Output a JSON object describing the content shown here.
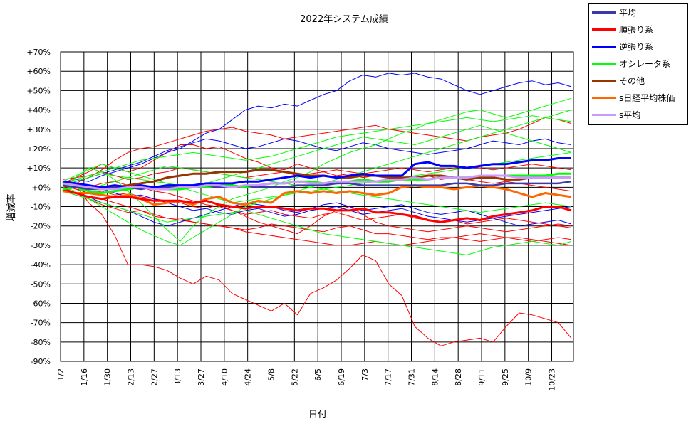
{
  "chart_data": {
    "type": "line",
    "title": "2022年システム成績",
    "xlabel": "日付",
    "ylabel": "増減率",
    "x_ticks": [
      "1/2",
      "1/16",
      "1/30",
      "2/13",
      "2/27",
      "3/13",
      "3/27",
      "4/10",
      "4/24",
      "5/8",
      "5/22",
      "6/5",
      "6/19",
      "7/3",
      "7/17",
      "7/31",
      "8/14",
      "8/28",
      "9/11",
      "9/25",
      "10/9",
      "10/23"
    ],
    "x_range": [
      "2022-01-02",
      "2022-11-05"
    ],
    "ylim": [
      -90,
      70
    ],
    "y_ticks": [
      "+70%",
      "+60%",
      "+50%",
      "+40%",
      "+30%",
      "+20%",
      "+10%",
      "+0%",
      "-10%",
      "-20%",
      "-30%",
      "-40%",
      "-50%",
      "-60%",
      "-70%",
      "-80%",
      "-90%"
    ],
    "grid": true,
    "legend_position": "top-right",
    "series": [
      {
        "name": "平均",
        "color": "#3a3aa8",
        "width": 2.5,
        "values": [
          1,
          0,
          -1,
          -1,
          0,
          0,
          -1,
          0,
          0,
          1,
          1,
          1,
          0,
          0,
          1,
          0,
          0,
          0,
          1,
          1,
          1,
          2,
          2,
          1,
          1,
          1,
          1,
          1,
          1,
          1,
          2,
          2,
          1,
          1,
          2,
          2,
          2,
          2,
          2,
          3
        ]
      },
      {
        "name": "順張り系",
        "color": "#ff0000",
        "width": 3,
        "values": [
          -1,
          -3,
          -5,
          -6,
          -5,
          -5,
          -6,
          -7,
          -7,
          -7,
          -8,
          -7,
          -9,
          -10,
          -11,
          -10,
          -10,
          -11,
          -12,
          -11,
          -11,
          -12,
          -12,
          -11,
          -13,
          -13,
          -14,
          -15,
          -17,
          -18,
          -17,
          -16,
          -17,
          -15,
          -14,
          -13,
          -12,
          -10,
          -10,
          -12
        ]
      },
      {
        "name": "逆張り系",
        "color": "#0000ff",
        "width": 3,
        "values": [
          3,
          2,
          1,
          0,
          1,
          0,
          1,
          0,
          1,
          1,
          1,
          2,
          2,
          2,
          3,
          3,
          4,
          5,
          6,
          5,
          6,
          5,
          6,
          7,
          6,
          6,
          6,
          12,
          13,
          11,
          11,
          10,
          11,
          12,
          12,
          13,
          14,
          14,
          15,
          15
        ]
      },
      {
        "name": "オシレータ系",
        "color": "#00ff00",
        "width": 3,
        "values": [
          -1,
          0,
          -2,
          -3,
          -2,
          -1,
          0,
          0,
          -1,
          -1,
          0,
          0,
          1,
          1,
          0,
          1,
          2,
          2,
          3,
          3,
          2,
          2,
          3,
          4,
          3,
          3,
          4,
          4,
          4,
          5,
          5,
          5,
          5,
          6,
          6,
          6,
          6,
          6,
          7,
          7
        ]
      },
      {
        "name": "その他",
        "color": "#993300",
        "width": 3,
        "values": [
          2,
          1,
          0,
          -1,
          0,
          1,
          2,
          3,
          5,
          6,
          7,
          7,
          8,
          8,
          8,
          9,
          9,
          8,
          7,
          6,
          6,
          5,
          5,
          6,
          6,
          5,
          5,
          5,
          6,
          6,
          5,
          4,
          5,
          5,
          4,
          4,
          5,
          5,
          5,
          5
        ]
      },
      {
        "name": "s日経平均株価",
        "color": "#ff6600",
        "width": 3,
        "values": [
          -2,
          -3,
          -3,
          -4,
          -5,
          -4,
          -6,
          -9,
          -8,
          -7,
          -9,
          -6,
          -5,
          -8,
          -9,
          -7,
          -8,
          -3,
          -2,
          -3,
          -2,
          -3,
          -2,
          -3,
          -4,
          -3,
          0,
          1,
          0,
          0,
          -1,
          0,
          1,
          0,
          -1,
          -3,
          -5,
          -3,
          -4,
          -5
        ]
      },
      {
        "name": "s平均",
        "color": "#cc99ff",
        "width": 3,
        "values": [
          2,
          1,
          0,
          -1,
          -1,
          0,
          0,
          -1,
          -1,
          0,
          0,
          1,
          1,
          0,
          1,
          1,
          2,
          2,
          3,
          2,
          2,
          3,
          3,
          3,
          3,
          4,
          4,
          5,
          4,
          5,
          5,
          5,
          6,
          6,
          6,
          5,
          5,
          5,
          5,
          5
        ]
      }
    ],
    "members": [
      {
        "color": "#ff0000",
        "values": [
          3,
          1,
          -8,
          -14,
          -25,
          -40,
          -40,
          -41,
          -43,
          -47,
          -50,
          -46,
          -48,
          -55,
          -58,
          -61,
          -64,
          -60,
          -66,
          -55,
          -52,
          -48,
          -42,
          -35,
          -38,
          -50,
          -56,
          -72,
          -78,
          -82,
          -80,
          -79,
          -78,
          -80,
          -72,
          -65,
          -66,
          -68,
          -70,
          -78
        ]
      },
      {
        "color": "#ff0000",
        "values": [
          2,
          5,
          8,
          12,
          10,
          8,
          10,
          14,
          18,
          22,
          22,
          20,
          21,
          18,
          15,
          13,
          10,
          9,
          12,
          10,
          8,
          6,
          7,
          5,
          6,
          5,
          4,
          5,
          6,
          4,
          5,
          4,
          3,
          2,
          3,
          2,
          1,
          0,
          -1,
          -2
        ]
      },
      {
        "color": "#ff0000",
        "values": [
          0,
          -3,
          -5,
          -6,
          -8,
          -10,
          -12,
          -15,
          -16,
          -16,
          -18,
          -19,
          -20,
          -21,
          -22,
          -21,
          -19,
          -20,
          -21,
          -22,
          -23,
          -21,
          -20,
          -22,
          -24,
          -24,
          -25,
          -26,
          -27,
          -26,
          -26,
          -25,
          -24,
          -25,
          -26,
          -26,
          -27,
          -28,
          -29,
          -30
        ]
      },
      {
        "color": "#ff0000",
        "values": [
          4,
          5,
          6,
          8,
          6,
          4,
          5,
          7,
          8,
          10,
          9,
          8,
          7,
          6,
          5,
          6,
          7,
          8,
          6,
          7,
          8,
          9,
          8,
          7,
          8,
          9,
          10,
          9,
          8,
          9,
          10,
          11,
          10,
          9,
          10,
          11,
          12,
          11,
          10,
          9
        ]
      },
      {
        "color": "#ff0000",
        "values": [
          -2,
          -4,
          -6,
          -9,
          -11,
          -13,
          -12,
          -14,
          -16,
          -17,
          -18,
          -19,
          -20,
          -21,
          -23,
          -24,
          -25,
          -26,
          -27,
          -28,
          -29,
          -30,
          -30,
          -29,
          -28,
          -29,
          -30,
          -29,
          -28,
          -27,
          -26,
          -27,
          -28,
          -27,
          -26,
          -27,
          -28,
          -27,
          -26,
          -27
        ]
      },
      {
        "color": "#ff0000",
        "values": [
          0,
          2,
          5,
          9,
          14,
          18,
          20,
          21,
          23,
          25,
          27,
          29,
          30,
          31,
          29,
          28,
          27,
          25,
          26,
          27,
          28,
          29,
          30,
          31,
          32,
          30,
          29,
          28,
          27,
          26,
          25,
          24,
          26,
          27,
          28,
          30,
          33,
          36,
          35,
          33
        ]
      },
      {
        "color": "#ff0000",
        "values": [
          1,
          -1,
          -3,
          -2,
          -4,
          -3,
          -5,
          -6,
          -7,
          -8,
          -10,
          -11,
          -9,
          -12,
          -14,
          -13,
          -12,
          -14,
          -15,
          -16,
          -14,
          -13,
          -15,
          -17,
          -16,
          -15,
          -14,
          -16,
          -17,
          -18,
          -17,
          -19,
          -18,
          -17,
          -16,
          -17,
          -18,
          -19,
          -20,
          -21
        ]
      },
      {
        "color": "#ff0000",
        "values": [
          0,
          1,
          0,
          2,
          3,
          1,
          0,
          -2,
          -3,
          -5,
          -7,
          -9,
          -10,
          -12,
          -15,
          -18,
          -20,
          -22,
          -24,
          -20,
          -15,
          -12,
          -10,
          -14,
          -18,
          -20,
          -21,
          -22,
          -23,
          -22,
          -21,
          -20,
          -21,
          -22,
          -23,
          -22,
          -21,
          -20,
          -19,
          -20
        ]
      },
      {
        "color": "#0000ff",
        "values": [
          2,
          4,
          3,
          6,
          8,
          10,
          12,
          15,
          18,
          20,
          24,
          28,
          30,
          35,
          40,
          42,
          41,
          43,
          42,
          45,
          48,
          50,
          55,
          58,
          57,
          59,
          58,
          59,
          57,
          56,
          53,
          50,
          48,
          50,
          52,
          54,
          55,
          53,
          54,
          52
        ]
      },
      {
        "color": "#0000ff",
        "values": [
          3,
          2,
          0,
          -1,
          -3,
          -5,
          -4,
          -6,
          -8,
          -10,
          -12,
          -11,
          -13,
          -14,
          -12,
          -11,
          -13,
          -15,
          -14,
          -12,
          -11,
          -10,
          -12,
          -14,
          -13,
          -12,
          -11,
          -13,
          -15,
          -16,
          -17,
          -18,
          -17,
          -16,
          -18,
          -20,
          -19,
          -18,
          -17,
          -19
        ]
      },
      {
        "color": "#0000ff",
        "values": [
          1,
          3,
          5,
          7,
          9,
          11,
          13,
          16,
          19,
          21,
          23,
          25,
          24,
          22,
          20,
          21,
          23,
          25,
          24,
          22,
          20,
          19,
          21,
          23,
          22,
          20,
          19,
          18,
          17,
          18,
          19,
          20,
          22,
          24,
          23,
          22,
          24,
          25,
          23,
          22
        ]
      },
      {
        "color": "#0000ff",
        "values": [
          -1,
          -3,
          -5,
          -8,
          -10,
          -12,
          -15,
          -18,
          -20,
          -18,
          -16,
          -14,
          -12,
          -10,
          -8,
          -9,
          -10,
          -12,
          -13,
          -11,
          -9,
          -8,
          -10,
          -12,
          -11,
          -10,
          -9,
          -11,
          -13,
          -14,
          -13,
          -12,
          -14,
          -16,
          -15,
          -14,
          -13,
          -12,
          -11,
          -10
        ]
      },
      {
        "color": "#00ff00",
        "values": [
          0,
          5,
          10,
          8,
          4,
          -2,
          -8,
          -15,
          -22,
          -28,
          -20,
          -14,
          -10,
          -6,
          -4,
          -2,
          0,
          3,
          5,
          8,
          12,
          15,
          18,
          20,
          22,
          25,
          28,
          30,
          33,
          35,
          37,
          39,
          40,
          38,
          36,
          38,
          40,
          42,
          44,
          46
        ]
      },
      {
        "color": "#00ff00",
        "values": [
          2,
          4,
          6,
          8,
          10,
          12,
          14,
          15,
          16,
          17,
          18,
          17,
          16,
          15,
          14,
          15,
          16,
          18,
          20,
          22,
          24,
          26,
          27,
          28,
          29,
          30,
          31,
          32,
          33,
          34,
          35,
          36,
          35,
          34,
          35,
          36,
          37,
          36,
          35,
          34
        ]
      },
      {
        "color": "#00ff00",
        "values": [
          -2,
          -4,
          -6,
          -8,
          -10,
          -12,
          -14,
          -16,
          -18,
          -17,
          -16,
          -15,
          -14,
          -13,
          -12,
          -14,
          -16,
          -18,
          -20,
          -22,
          -24,
          -25,
          -26,
          -27,
          -28,
          -29,
          -30,
          -31,
          -32,
          -33,
          -34,
          -35,
          -33,
          -31,
          -30,
          -29,
          -28,
          -29,
          -30,
          -28
        ]
      },
      {
        "color": "#00ff00",
        "values": [
          1,
          3,
          5,
          7,
          6,
          5,
          4,
          3,
          2,
          1,
          0,
          2,
          4,
          6,
          8,
          10,
          12,
          14,
          16,
          18,
          20,
          22,
          24,
          26,
          25,
          24,
          23,
          22,
          24,
          26,
          28,
          30,
          32,
          30,
          28,
          26,
          24,
          22,
          20,
          18
        ]
      },
      {
        "color": "#00ff00",
        "values": [
          0,
          -2,
          -1,
          1,
          3,
          5,
          7,
          9,
          11,
          10,
          9,
          8,
          7,
          6,
          5,
          4,
          3,
          2,
          1,
          0,
          -1,
          -2,
          -3,
          -4,
          -5,
          -6,
          -7,
          -8,
          -9,
          -10,
          -11,
          -12,
          -13,
          -12,
          -11,
          -10,
          -9,
          -8,
          -9,
          -10
        ]
      },
      {
        "color": "#00ff00",
        "values": [
          -1,
          -3,
          -6,
          -10,
          -14,
          -18,
          -22,
          -25,
          -28,
          -30,
          -26,
          -22,
          -18,
          -14,
          -10,
          -8,
          -6,
          -4,
          -2,
          0,
          2,
          4,
          6,
          8,
          10,
          12,
          14,
          16,
          18,
          20,
          22,
          24,
          26,
          28,
          30,
          32,
          34,
          36,
          38,
          40
        ]
      },
      {
        "color": "#00ff00",
        "values": [
          3,
          6,
          9,
          12,
          10,
          8,
          6,
          4,
          2,
          0,
          -2,
          -4,
          -6,
          -8,
          -7,
          -6,
          -5,
          -4,
          -3,
          -2,
          -1,
          0,
          1,
          2,
          3,
          4,
          5,
          6,
          7,
          8,
          9,
          10,
          11,
          12,
          13,
          14,
          15,
          16,
          17,
          18
        ]
      }
    ]
  },
  "legend": {
    "items": [
      {
        "label": "平均",
        "color": "#3a3aa8"
      },
      {
        "label": "順張り系",
        "color": "#ff0000"
      },
      {
        "label": "逆張り系",
        "color": "#0000ff"
      },
      {
        "label": "オシレータ系",
        "color": "#00ff00"
      },
      {
        "label": "その他",
        "color": "#993300"
      },
      {
        "label": "s日経平均株価",
        "color": "#ff6600"
      },
      {
        "label": "s平均",
        "color": "#cc99ff"
      }
    ]
  }
}
